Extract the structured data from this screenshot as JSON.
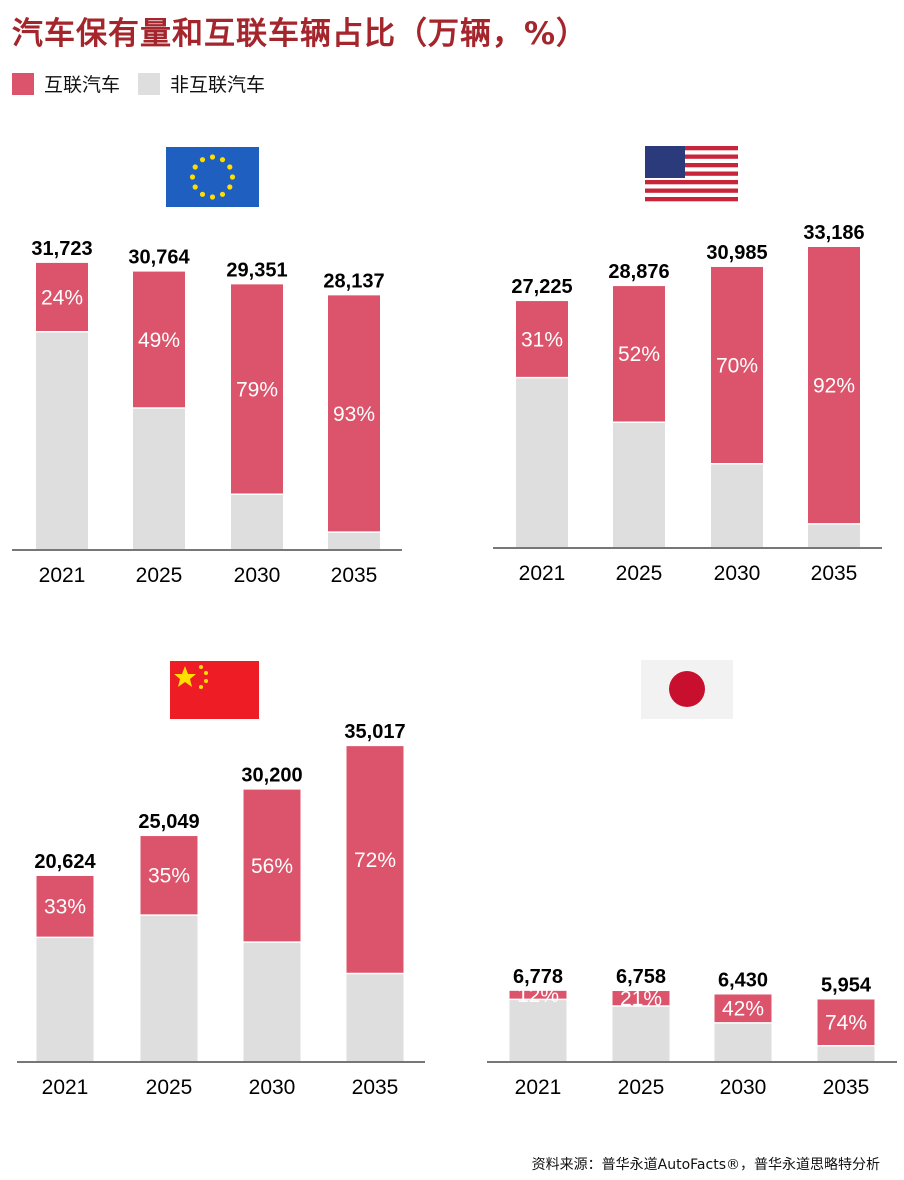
{
  "title": "汽车保有量和互联车辆占比（万辆，%）",
  "legend": [
    {
      "label": "互联汽车",
      "color": "#dc546b"
    },
    {
      "label": "非互联汽车",
      "color": "#dedede"
    }
  ],
  "source": "资料来源：普华永道AutoFacts®，普华永道思略特分析",
  "chart_data": [
    {
      "type": "bar",
      "stacked": true,
      "region": "EU",
      "flag": "eu-flag",
      "categories": [
        "2021",
        "2025",
        "2030",
        "2035"
      ],
      "totals": [
        31723,
        30764,
        29351,
        28137
      ],
      "totals_label": [
        "31,723",
        "30,764",
        "29,351",
        "28,137"
      ],
      "connected_pct": [
        24,
        49,
        79,
        93
      ]
    },
    {
      "type": "bar",
      "stacked": true,
      "region": "US",
      "flag": "us-flag",
      "categories": [
        "2021",
        "2025",
        "2030",
        "2035"
      ],
      "totals": [
        27225,
        28876,
        30985,
        33186
      ],
      "totals_label": [
        "27,225",
        "28,876",
        "30,985",
        "33,186"
      ],
      "connected_pct": [
        31,
        52,
        70,
        92
      ]
    },
    {
      "type": "bar",
      "stacked": true,
      "region": "China",
      "flag": "china-flag",
      "categories": [
        "2021",
        "2025",
        "2030",
        "2035"
      ],
      "totals": [
        20624,
        25049,
        30200,
        35017
      ],
      "totals_label": [
        "20,624",
        "25,049",
        "30,200",
        "35,017"
      ],
      "connected_pct": [
        33,
        35,
        56,
        72
      ]
    },
    {
      "type": "bar",
      "stacked": true,
      "region": "Japan",
      "flag": "japan-flag",
      "categories": [
        "2021",
        "2025",
        "2030",
        "2035"
      ],
      "totals": [
        6778,
        6758,
        6430,
        5954
      ],
      "totals_label": [
        "6,778",
        "6,758",
        "6,430",
        "5,954"
      ],
      "connected_pct": [
        12,
        21,
        42,
        74
      ]
    }
  ]
}
